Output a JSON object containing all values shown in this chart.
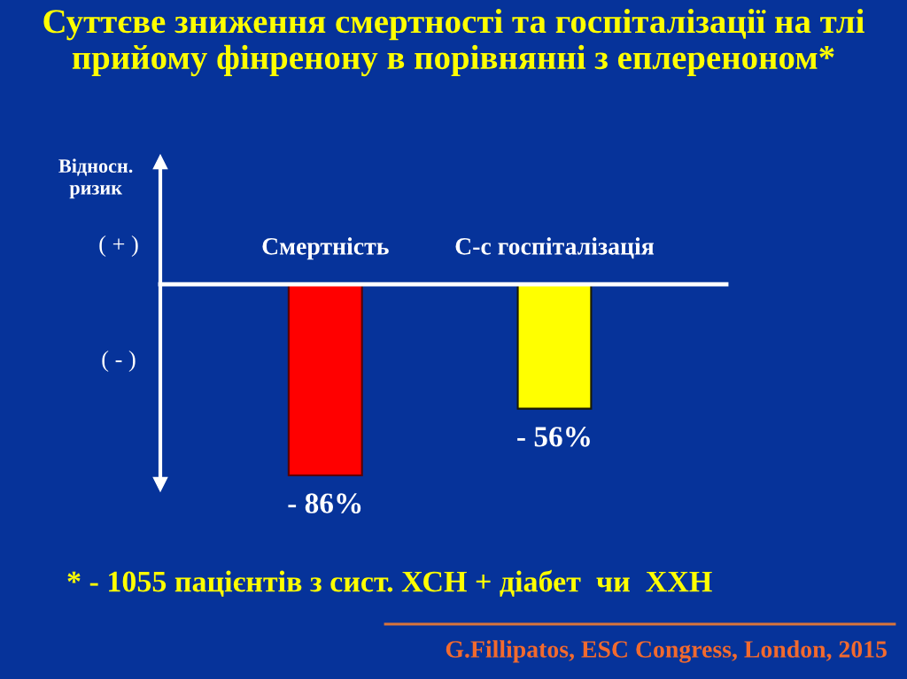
{
  "chart_data": {
    "type": "bar",
    "title": "Суттєве зниження смертності та госпіталізації на тлі\nприйому фінренону в порівнянні з еплереноном*",
    "ylabel": "Відносн.\nризик",
    "categories": [
      "Смертність",
      "С-с госпіталізація"
    ],
    "values": [
      -86,
      -56
    ],
    "colors": [
      "#ff0000",
      "#ffff00"
    ],
    "value_labels": [
      "- 86%",
      "- 56%"
    ],
    "ylim": [
      -90,
      55
    ],
    "tick_labels": "x",
    "annotations": [
      "( + )",
      "( - )",
      "* - 1055 пацієнтів з сист. ХСН + діабет  чи  ХХН",
      "G.Fillipatos, ESC Congress, London, 2015"
    ]
  }
}
